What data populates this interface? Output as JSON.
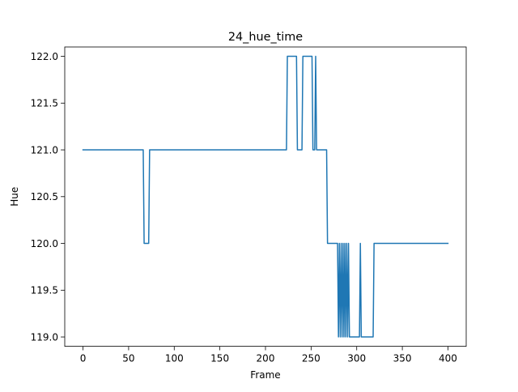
{
  "chart_data": {
    "type": "line",
    "title": "24_hue_time",
    "xlabel": "Frame",
    "ylabel": "Hue",
    "xlim": [
      -20,
      420
    ],
    "ylim": [
      118.9,
      122.1
    ],
    "x_ticks": [
      0,
      50,
      100,
      150,
      200,
      250,
      300,
      350,
      400
    ],
    "x_tick_labels": [
      "0",
      "50",
      "100",
      "150",
      "200",
      "250",
      "300",
      "350",
      "400"
    ],
    "y_ticks": [
      119.0,
      119.5,
      120.0,
      120.5,
      121.0,
      121.5,
      122.0
    ],
    "y_tick_labels": [
      "119.0",
      "119.5",
      "120.0",
      "120.5",
      "121.0",
      "121.5",
      "122.0"
    ],
    "grid": false,
    "series": [
      {
        "color": "#1f77b4",
        "points": [
          [
            0,
            121
          ],
          [
            66,
            121
          ],
          [
            67,
            120
          ],
          [
            72,
            120
          ],
          [
            73,
            121
          ],
          [
            223,
            121
          ],
          [
            224,
            122
          ],
          [
            234,
            122
          ],
          [
            235,
            121
          ],
          [
            240,
            121
          ],
          [
            241,
            122
          ],
          [
            251,
            122
          ],
          [
            252,
            121
          ],
          [
            254,
            121
          ],
          [
            255,
            122
          ],
          [
            256,
            121
          ],
          [
            267,
            121
          ],
          [
            268,
            120
          ],
          [
            279,
            120
          ],
          [
            280,
            119
          ],
          [
            281,
            120
          ],
          [
            282,
            119
          ],
          [
            283,
            120
          ],
          [
            284,
            119
          ],
          [
            285,
            120
          ],
          [
            286,
            119
          ],
          [
            287,
            120
          ],
          [
            288,
            119
          ],
          [
            289,
            120
          ],
          [
            290,
            119
          ],
          [
            291,
            120
          ],
          [
            292,
            119
          ],
          [
            303,
            119
          ],
          [
            304,
            120
          ],
          [
            305,
            119
          ],
          [
            318,
            119
          ],
          [
            319,
            120
          ],
          [
            400,
            120
          ]
        ]
      }
    ]
  }
}
